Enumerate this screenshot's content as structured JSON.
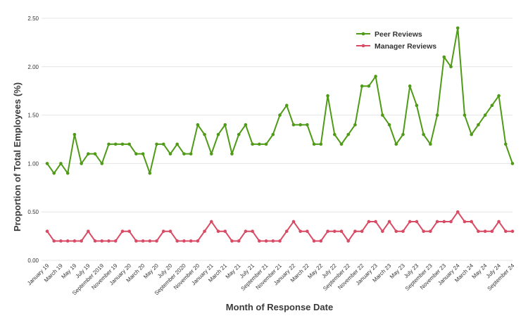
{
  "chart_data": {
    "type": "line",
    "title": "",
    "xlabel": "Month of Response Date",
    "ylabel": "Proportion of Total Employees (%)",
    "ylim": [
      0,
      2.5
    ],
    "yticks": [
      "0.00",
      "0.50",
      "1.00",
      "1.50",
      "2.00",
      "2.50"
    ],
    "grid": true,
    "legend_position": "top-right",
    "x": [
      "January 19",
      "February 19",
      "March 19",
      "April 19",
      "May 19",
      "June 19",
      "July 19",
      "August 19",
      "September 2019",
      "October 19",
      "November 19",
      "December 19",
      "January 20",
      "February 20",
      "March 20",
      "April 20",
      "May 20",
      "June 20",
      "July 20",
      "August 20",
      "September 2020",
      "October 20",
      "November 20",
      "December 20",
      "January 21",
      "February 21",
      "March 21",
      "April 21",
      "May 21",
      "June 21",
      "July 21",
      "August 21",
      "September 21",
      "October 21",
      "November 21",
      "December 21",
      "January 22",
      "February 22",
      "March 22",
      "April 22",
      "May 22",
      "June 22",
      "July 22",
      "August 22",
      "September 22",
      "October 22",
      "November 22",
      "December 22",
      "January 23",
      "February 23",
      "March 23",
      "April 23",
      "May 23",
      "June 23",
      "July 23",
      "August 23",
      "September 23",
      "October 23",
      "November 23",
      "December 23",
      "January 24",
      "February 24",
      "March 24",
      "April 24",
      "May 24",
      "June 24",
      "July 24",
      "August 24",
      "September 24"
    ],
    "x_tick_labels": [
      "January 19",
      "March 19",
      "May 19",
      "July 19",
      "September 2019",
      "November 19",
      "January 20",
      "March 20",
      "May 20",
      "July 20",
      "September 2020",
      "November 20",
      "January 21",
      "March 21",
      "May 21",
      "July 21",
      "September 21",
      "November 21",
      "January 22",
      "March 22",
      "May 22",
      "July 22",
      "September 22",
      "November 22",
      "January 23",
      "March 23",
      "May 23",
      "July 23",
      "September 23",
      "November 23",
      "January 24",
      "March 24",
      "May 24",
      "July 24",
      "September 24"
    ],
    "series": [
      {
        "name": "Peer Reviews",
        "color": "#4f9a16",
        "values": [
          1.0,
          0.9,
          1.0,
          0.9,
          1.3,
          1.0,
          1.1,
          1.1,
          1.0,
          1.2,
          1.2,
          1.2,
          1.2,
          1.1,
          1.1,
          0.9,
          1.2,
          1.2,
          1.1,
          1.2,
          1.1,
          1.1,
          1.4,
          1.3,
          1.1,
          1.3,
          1.4,
          1.1,
          1.3,
          1.4,
          1.2,
          1.2,
          1.2,
          1.3,
          1.5,
          1.6,
          1.4,
          1.4,
          1.4,
          1.2,
          1.2,
          1.7,
          1.3,
          1.2,
          1.3,
          1.4,
          1.8,
          1.8,
          1.9,
          1.5,
          1.4,
          1.2,
          1.3,
          1.8,
          1.6,
          1.3,
          1.2,
          1.5,
          2.1,
          2.0,
          2.4,
          1.5,
          1.3,
          1.4,
          1.5,
          1.6,
          1.7,
          1.2,
          1.0
        ]
      },
      {
        "name": "Manager Reviews",
        "color": "#d94a64",
        "values": [
          0.3,
          0.2,
          0.2,
          0.2,
          0.2,
          0.2,
          0.3,
          0.2,
          0.2,
          0.2,
          0.2,
          0.3,
          0.3,
          0.2,
          0.2,
          0.2,
          0.2,
          0.3,
          0.3,
          0.2,
          0.2,
          0.2,
          0.2,
          0.3,
          0.4,
          0.3,
          0.3,
          0.2,
          0.2,
          0.3,
          0.3,
          0.2,
          0.2,
          0.2,
          0.2,
          0.3,
          0.4,
          0.3,
          0.3,
          0.2,
          0.2,
          0.3,
          0.3,
          0.3,
          0.2,
          0.3,
          0.3,
          0.4,
          0.4,
          0.3,
          0.4,
          0.3,
          0.3,
          0.4,
          0.4,
          0.3,
          0.3,
          0.4,
          0.4,
          0.4,
          0.5,
          0.4,
          0.4,
          0.3,
          0.3,
          0.3,
          0.4,
          0.3,
          0.3
        ]
      }
    ]
  }
}
